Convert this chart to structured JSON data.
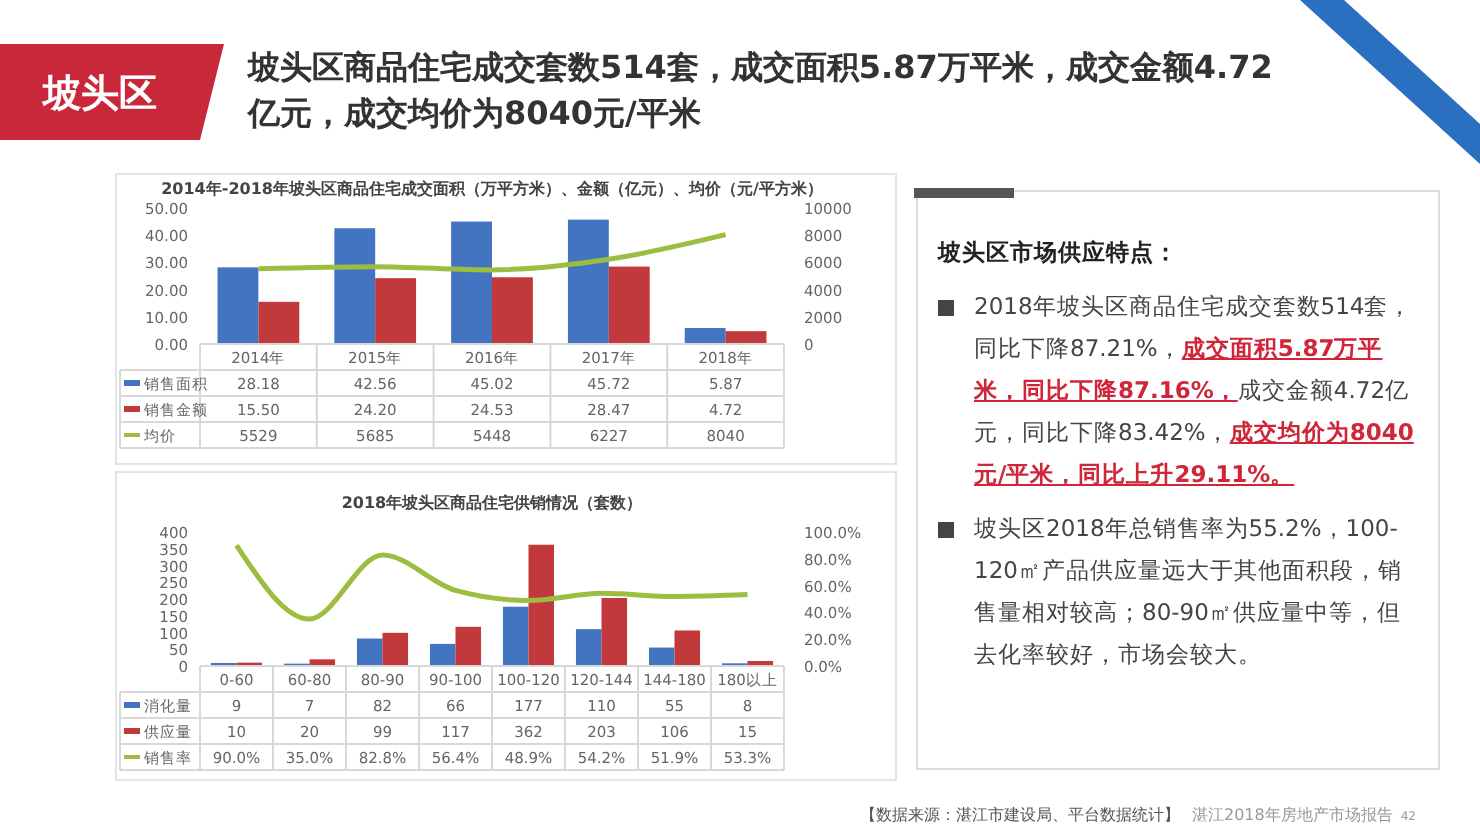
{
  "chart_data": [
    {
      "type": "other",
      "title": "坡头区商品住宅成交套数514套，成交面积5.87万平米，成交金额4.72亿元，成交均价为8040元/平米",
      "subtitle": "坡头区",
      "annotations": [
        "【数据来源：湛江市建设局、平台数据统计】",
        "湛江2018年房地产市场报告",
        "42"
      ]
    },
    {
      "type": "bar",
      "title": "2014年-2018年坡头区商品住宅成交面积（万平方米）、金额（亿元）、均价（元/平方米）",
      "categories": [
        "2014年",
        "2015年",
        "2016年",
        "2017年",
        "2018年"
      ],
      "legend": "bottom",
      "ylim": [
        0,
        50
      ],
      "yticks": [
        {
          "value": 0,
          "label": "0.00"
        },
        {
          "value": 10,
          "label": "10.00"
        },
        {
          "value": 20,
          "label": "20.00"
        },
        {
          "value": 30,
          "label": "30.00"
        },
        {
          "value": 40,
          "label": "40.00"
        },
        {
          "value": 50,
          "label": "50.00"
        }
      ],
      "y2lim": [
        0,
        10000
      ],
      "y2ticks": [
        0,
        2000,
        4000,
        6000,
        8000,
        10000
      ],
      "series": [
        {
          "name": "销售面积",
          "color": "#4374c1",
          "values": [
            28.18,
            42.56,
            45.02,
            45.72,
            5.87
          ],
          "value_labels": [
            "28.18",
            "42.56",
            "45.02",
            "45.72",
            "5.87"
          ]
        },
        {
          "name": "销售金额",
          "color": "#c2393c",
          "values": [
            15.5,
            24.2,
            24.53,
            28.47,
            4.72
          ],
          "value_labels": [
            "15.50",
            "24.20",
            "24.53",
            "28.47",
            "4.72"
          ]
        },
        {
          "name": "均价",
          "type": "line",
          "axis": "y2",
          "color": "#9cbd3f",
          "values": [
            5529,
            5685,
            5448,
            6227,
            8040
          ],
          "value_labels": [
            "5529",
            "5685",
            "5448",
            "6227",
            "8040"
          ]
        }
      ]
    },
    {
      "type": "bar",
      "title": "2018年坡头区商品住宅供销情况（套数）",
      "categories": [
        "0-60",
        "60-80",
        "80-90",
        "90-100",
        "100-120",
        "120-144",
        "144-180",
        "180以上"
      ],
      "legend": "bottom",
      "ylim": [
        0,
        400
      ],
      "yticks": [
        0,
        50,
        100,
        150,
        200,
        250,
        300,
        350,
        400
      ],
      "y2lim": [
        0,
        100
      ],
      "y2ticks": [
        {
          "value": 0,
          "label": "0.0%"
        },
        {
          "value": 20,
          "label": "20.0%"
        },
        {
          "value": 40,
          "label": "40.0%"
        },
        {
          "value": 60,
          "label": "60.0%"
        },
        {
          "value": 80,
          "label": "80.0%"
        },
        {
          "value": 100,
          "label": "100.0%"
        }
      ],
      "series": [
        {
          "name": "消化量",
          "color": "#4374c1",
          "values": [
            9,
            7,
            82,
            66,
            177,
            110,
            55,
            8
          ],
          "value_labels": [
            "9",
            "7",
            "82",
            "66",
            "177",
            "110",
            "55",
            "8"
          ]
        },
        {
          "name": "供应量",
          "color": "#c2393c",
          "values": [
            10,
            20,
            99,
            117,
            362,
            203,
            106,
            15
          ],
          "value_labels": [
            "10",
            "20",
            "99",
            "117",
            "362",
            "203",
            "106",
            "15"
          ]
        },
        {
          "name": "销售率",
          "type": "line",
          "axis": "y2",
          "color": "#9cbd3f",
          "values": [
            90.0,
            35.0,
            82.8,
            56.4,
            48.9,
            54.2,
            51.9,
            53.3
          ],
          "value_labels": [
            "90.0%",
            "35.0%",
            "82.8%",
            "56.4%",
            "48.9%",
            "54.2%",
            "51.9%",
            "53.3%"
          ]
        }
      ]
    },
    {
      "type": "other",
      "title": "坡头区市场供应特点：",
      "annotations": [
        "2018年坡头区商品住宅成交套数514套，同比下降87.21%，",
        "成交面积5.87万平米，同比下降87.16%，",
        "成交金额4.72亿元，同比下降83.42%，",
        "成交均价为8040元/平米，同比上升29.11%。",
        "坡头区2018年总销售率为55.2%，100-120㎡产品供应量远大于其他面积段，销售量相对较高；80-90㎡供应量中等，但去化率较好，市场会较大。"
      ]
    }
  ]
}
